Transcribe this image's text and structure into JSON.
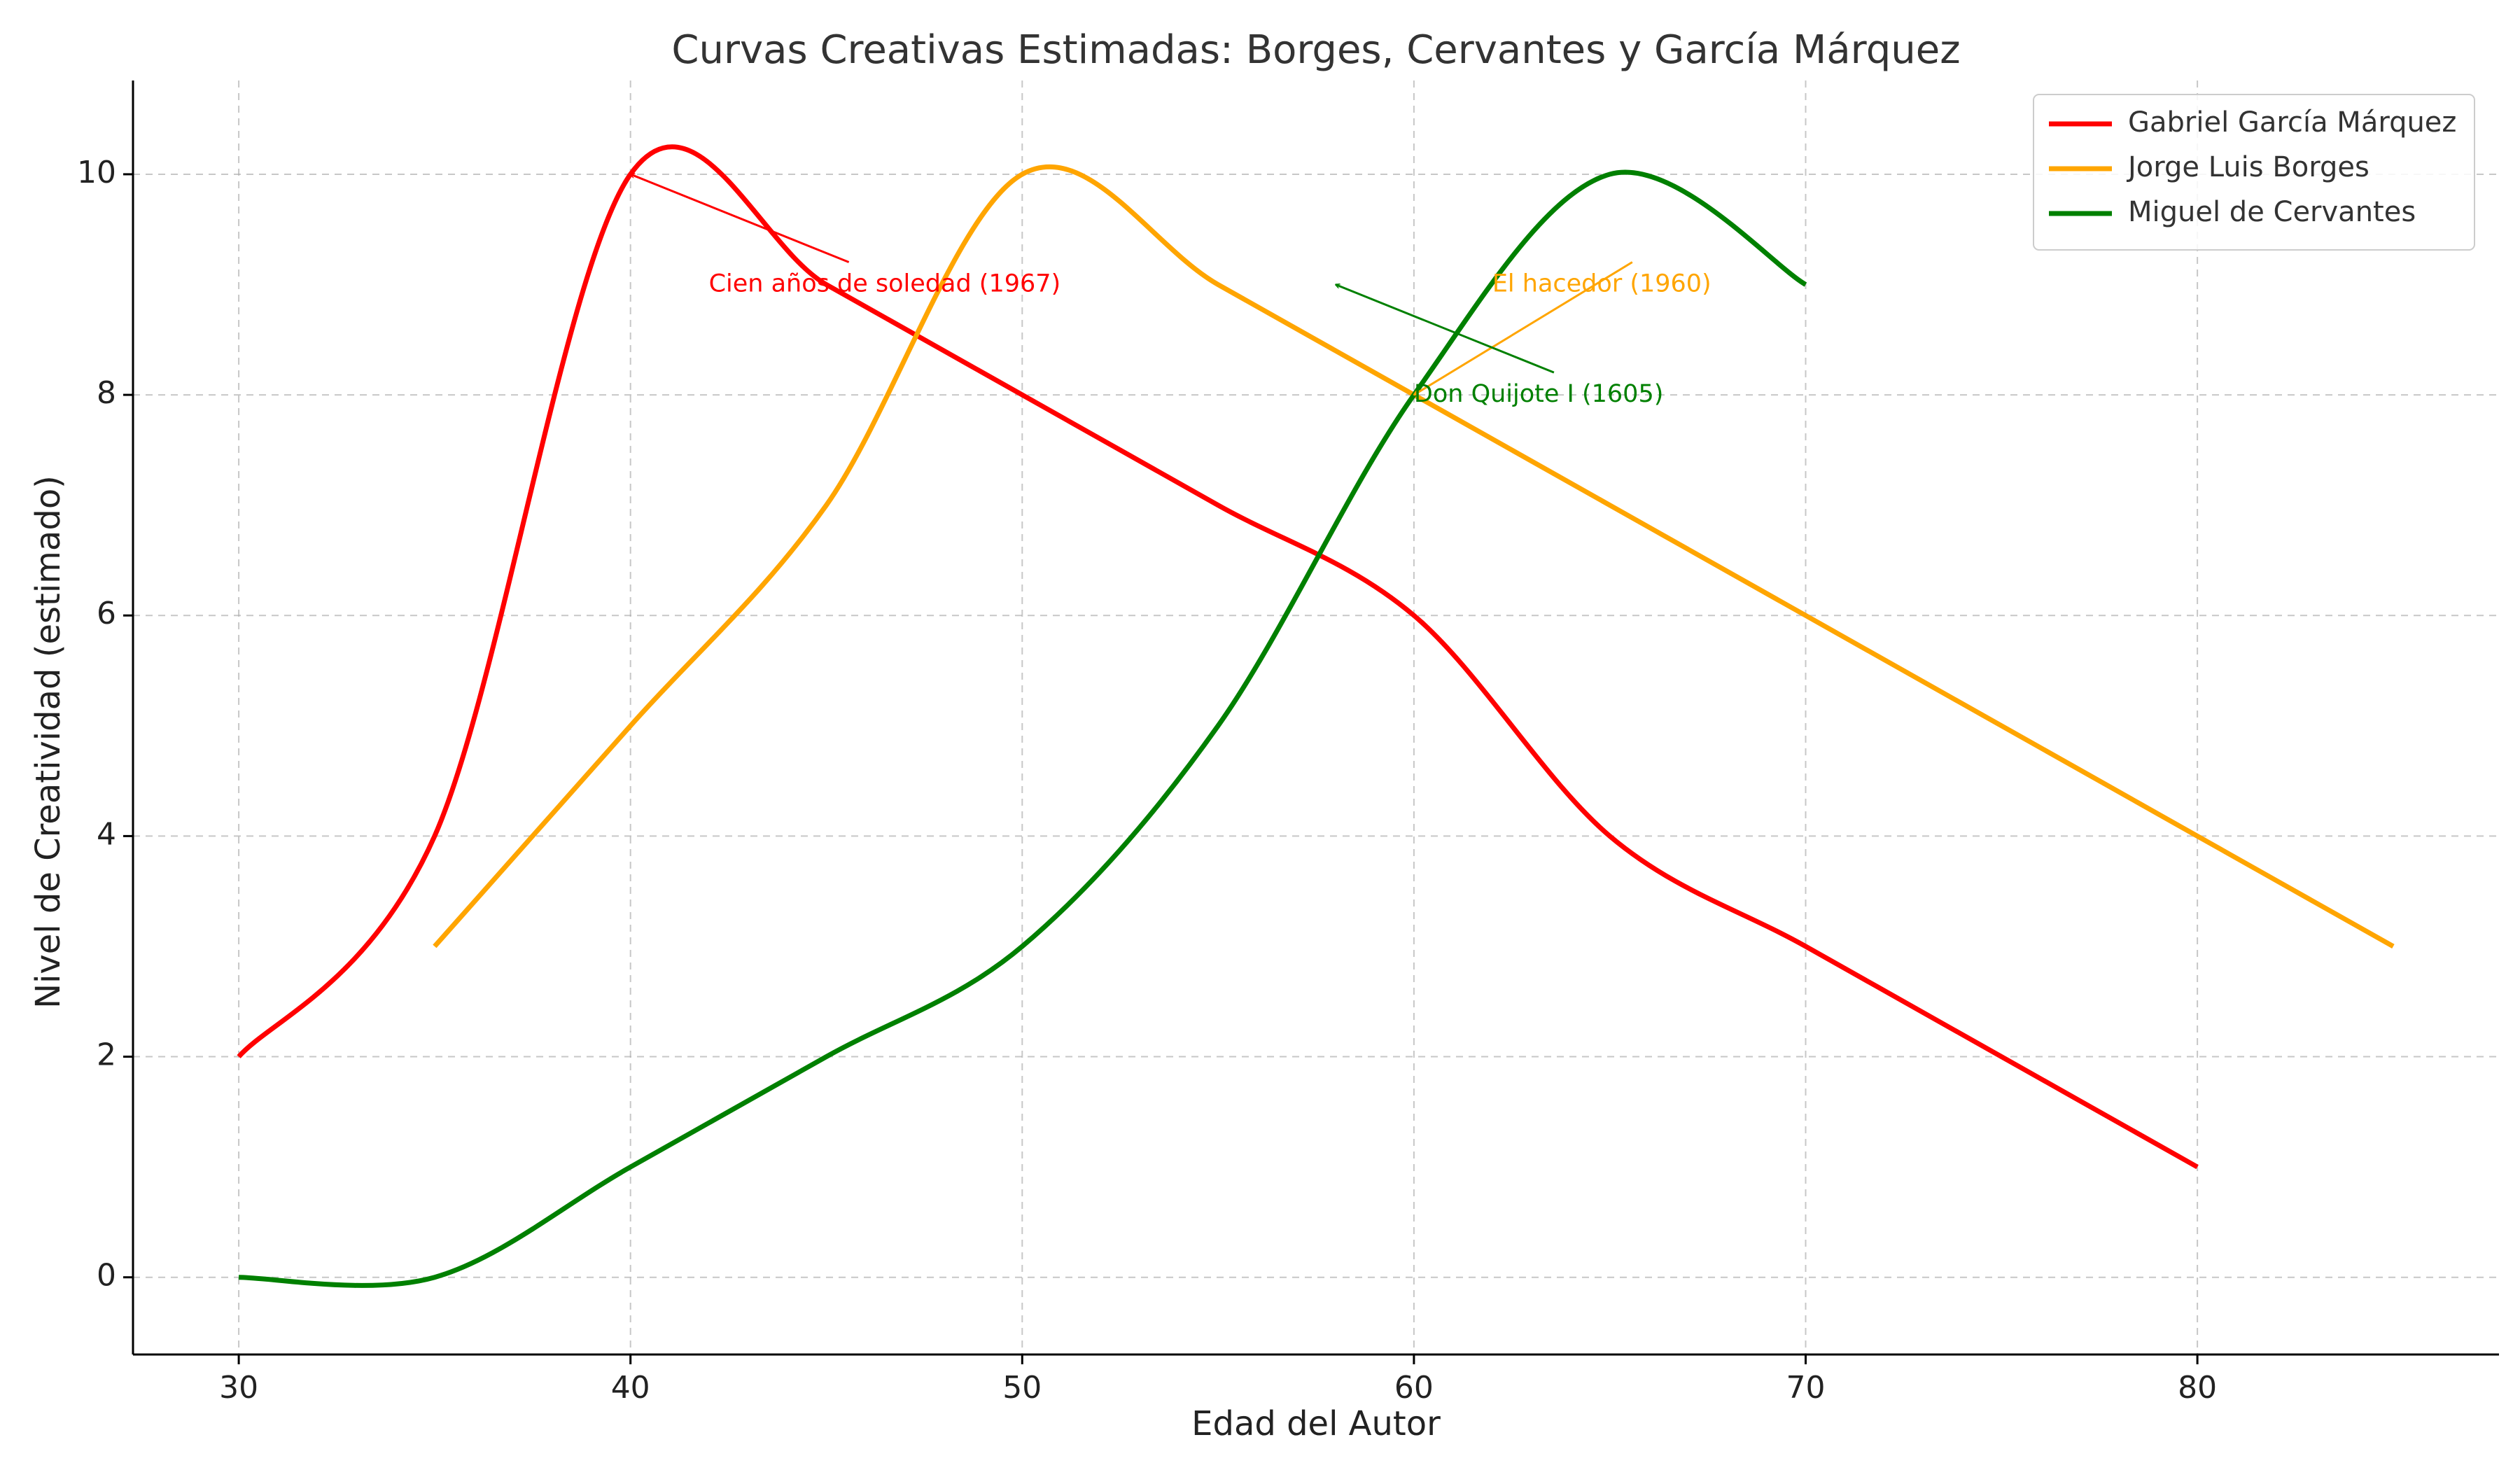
{
  "chart_data": {
    "type": "line",
    "title": "Curvas Creativas Estimadas: Borges, Cervantes y García Márquez",
    "xlabel": "Edad del Autor",
    "ylabel": "Nivel de Creatividad (estimado)",
    "xlim": [
      27.3,
      87.7
    ],
    "ylim": [
      -0.7,
      10.85
    ],
    "xticks": [
      30,
      40,
      50,
      60,
      70,
      80
    ],
    "yticks": [
      0,
      2,
      4,
      6,
      8,
      10
    ],
    "grid": true,
    "legend_position": "top-right",
    "series": [
      {
        "name": "Gabriel García Márquez",
        "color": "#ff0000",
        "x": [
          30,
          35,
          40,
          45,
          50,
          55,
          60,
          65,
          70,
          75,
          80
        ],
        "y": [
          2,
          4,
          10,
          9,
          8,
          7,
          6,
          4,
          3,
          2,
          1
        ]
      },
      {
        "name": "Jorge Luis Borges",
        "color": "#ffa500",
        "x": [
          35,
          40,
          45,
          50,
          55,
          60,
          65,
          70,
          75,
          80,
          85
        ],
        "y": [
          3,
          5,
          7,
          10,
          9,
          8,
          7,
          6,
          5,
          4,
          3
        ]
      },
      {
        "name": "Miguel de Cervantes",
        "color": "#008000",
        "x": [
          30,
          35,
          40,
          45,
          50,
          55,
          60,
          65,
          70
        ],
        "y": [
          0,
          0,
          1,
          2,
          3,
          5,
          8,
          10,
          9
        ]
      }
    ],
    "annotations": [
      {
        "text": "Cien años de soledad (1967)",
        "color": "#ff0000",
        "xy": [
          40,
          10
        ],
        "xytext": [
          42,
          9
        ]
      },
      {
        "text": "El hacedor (1960)",
        "color": "#ffa500",
        "xy": [
          60,
          8
        ],
        "xytext": [
          62,
          9
        ]
      },
      {
        "text": "Don Quijote I (1605)",
        "color": "#008000",
        "xy": [
          58,
          9
        ],
        "xytext": [
          60,
          8
        ]
      }
    ]
  }
}
